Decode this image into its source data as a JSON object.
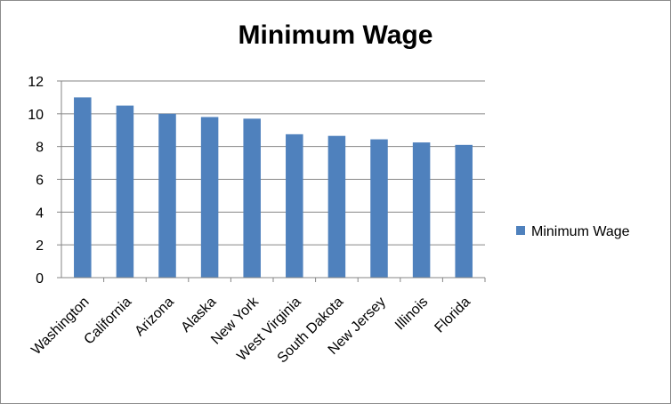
{
  "chart_data": {
    "type": "bar",
    "title": "Minimum Wage",
    "xlabel": "",
    "ylabel": "",
    "categories": [
      "Washington",
      "California",
      "Arizona",
      "Alaska",
      "New York",
      "West Virginia",
      "South Dakota",
      "New Jersey",
      "Illinois",
      "Florida"
    ],
    "series": [
      {
        "name": "Minimum Wage",
        "color": "#4f81bd",
        "values": [
          11.0,
          10.5,
          10.0,
          9.8,
          9.7,
          8.75,
          8.65,
          8.44,
          8.25,
          8.1
        ]
      }
    ],
    "ylim": [
      0,
      12
    ],
    "yticks": [
      0,
      2,
      4,
      6,
      8,
      10,
      12
    ],
    "grid": true,
    "legend": "right"
  }
}
